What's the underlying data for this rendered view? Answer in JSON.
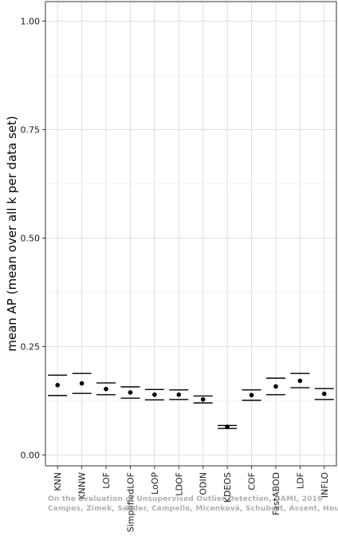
{
  "chart_data": {
    "type": "scatter",
    "ylabel": "mean AP (mean over all k per data set)",
    "xlabel": "",
    "categories": [
      "KNN",
      "KNNW",
      "LOF",
      "SimplifiedLOF",
      "LoOP",
      "LDOF",
      "ODIN",
      "KDEOS",
      "COF",
      "FastABOD",
      "LDF",
      "INFLO"
    ],
    "mean": [
      0.161,
      0.165,
      0.152,
      0.144,
      0.139,
      0.139,
      0.128,
      0.065,
      0.138,
      0.158,
      0.171,
      0.141
    ],
    "upper": [
      0.184,
      0.188,
      0.166,
      0.157,
      0.151,
      0.15,
      0.136,
      0.068,
      0.15,
      0.177,
      0.188,
      0.153
    ],
    "lower": [
      0.137,
      0.142,
      0.139,
      0.131,
      0.127,
      0.128,
      0.12,
      0.061,
      0.126,
      0.139,
      0.155,
      0.128
    ],
    "ylim": [
      -0.025,
      1.045
    ],
    "yticks": [
      "0.00",
      "0.25",
      "0.50",
      "0.75",
      "1.00"
    ],
    "grid": true,
    "legend": "none"
  },
  "watermark": {
    "line1": "On the Evaluation of Unsupervised Outlier Detection, DAMI, 2016",
    "line2": "Campos, Zimek, Sander, Campello, Micenková, Schubert, Assent, Houle"
  }
}
